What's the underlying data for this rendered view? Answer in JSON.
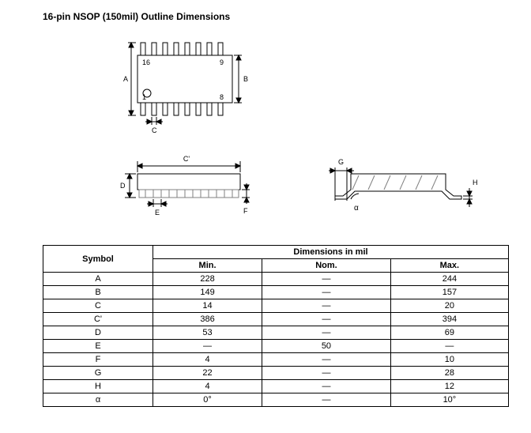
{
  "title": "16-pin NSOP (150mil) Outline Dimensions",
  "topview": {
    "pinCount": 16,
    "pinTop": [
      "16",
      "9"
    ],
    "pinBot": [
      "1",
      "8"
    ],
    "labelA": "A",
    "labelB": "B",
    "labelC": "C"
  },
  "sideview": {
    "labelCprime": "C'",
    "labelD": "D",
    "labelE": "E",
    "labelF": "F"
  },
  "endview": {
    "labelG": "G",
    "labelH": "H",
    "labelAlpha": "α"
  },
  "table": {
    "symbolHeader": "Symbol",
    "dimHeader": "Dimensions in mil",
    "cols": [
      "Min.",
      "Nom.",
      "Max."
    ],
    "rows": [
      {
        "sym": "A",
        "min": "228",
        "nom": "—",
        "max": "244"
      },
      {
        "sym": "B",
        "min": "149",
        "nom": "—",
        "max": "157"
      },
      {
        "sym": "C",
        "min": "14",
        "nom": "—",
        "max": "20"
      },
      {
        "sym": "C'",
        "min": "386",
        "nom": "—",
        "max": "394"
      },
      {
        "sym": "D",
        "min": "53",
        "nom": "—",
        "max": "69"
      },
      {
        "sym": "E",
        "min": "—",
        "nom": "50",
        "max": "—"
      },
      {
        "sym": "F",
        "min": "4",
        "nom": "—",
        "max": "10"
      },
      {
        "sym": "G",
        "min": "22",
        "nom": "—",
        "max": "28"
      },
      {
        "sym": "H",
        "min": "4",
        "nom": "—",
        "max": "12"
      },
      {
        "sym": "α",
        "min": "0°",
        "nom": "—",
        "max": "10°"
      }
    ]
  },
  "style": {
    "stroke": "#000000",
    "fill": "#ffffff",
    "hatch": "#808080",
    "fontSize": 9,
    "tableFontSize": 11
  }
}
